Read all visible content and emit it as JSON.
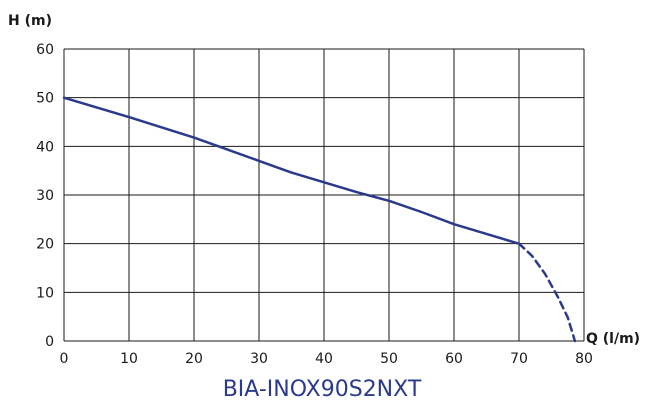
{
  "chart_data": {
    "type": "line",
    "title": "BIA-INOX90S2NXT",
    "xlabel": "Q (l/m)",
    "ylabel": "H (m)",
    "xlim": [
      0,
      80
    ],
    "ylim": [
      0,
      60
    ],
    "xticks": [
      0,
      10,
      20,
      30,
      40,
      50,
      60,
      70,
      80
    ],
    "yticks": [
      0,
      10,
      20,
      30,
      40,
      50,
      60
    ],
    "grid": true,
    "legend": "none",
    "series": [
      {
        "style": "solid",
        "color": "#2b3a8c",
        "x": [
          0,
          10,
          20,
          30,
          35,
          40,
          45,
          50,
          55,
          60,
          65,
          70
        ],
        "y": [
          50,
          46,
          41.8,
          37,
          34.6,
          32.6,
          30.6,
          28.8,
          26.5,
          24,
          22,
          20
        ]
      },
      {
        "style": "dashed",
        "color": "#2b3a8c",
        "x": [
          70,
          72,
          74,
          76,
          77.5,
          78.6
        ],
        "y": [
          20,
          17.5,
          13.8,
          9,
          4.8,
          0
        ]
      }
    ]
  }
}
